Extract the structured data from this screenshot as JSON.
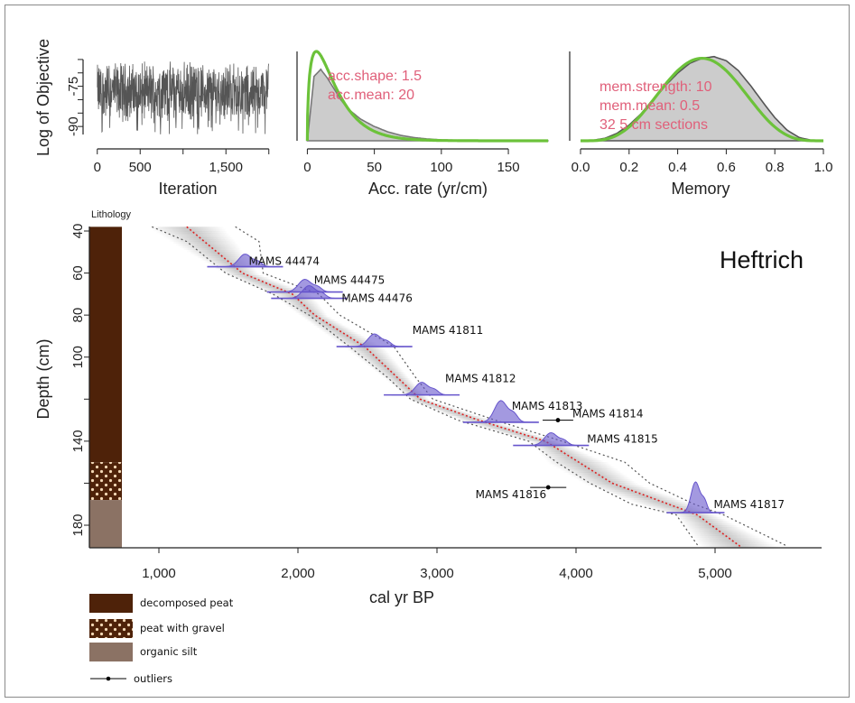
{
  "chart_data": [
    {
      "type": "line",
      "ylabel": "Log of Objective",
      "xlabel": "Iteration",
      "xlim": [
        -50,
        2150
      ],
      "ylim": [
        -95,
        -62
      ],
      "x_ticks": [
        0,
        500,
        1500
      ],
      "x_tick_labels": [
        "0",
        "500",
        "1,500"
      ],
      "x_minor_ticks": [
        1000,
        2000
      ],
      "y_ticks": [
        -75,
        -90
      ],
      "y_tick_labels": [
        "-75",
        "-90"
      ],
      "y_minor_ticks": [
        -65,
        -70,
        -80,
        -85
      ],
      "series": [
        {
          "mean": -77,
          "min": -93,
          "max": -65,
          "n_points": 2000,
          "color": "#555555"
        }
      ]
    },
    {
      "type": "area",
      "xlabel": "Acc. rate (yr/cm)",
      "xlim": [
        -5,
        185
      ],
      "x_ticks": [
        0,
        50,
        100,
        150
      ],
      "x_tick_labels": [
        "0",
        "50",
        "100",
        "150"
      ],
      "annotations": [
        "acc.shape:  1.5",
        "acc.mean:  20"
      ],
      "annotation_color": "#e0607a",
      "series": [
        {
          "kind": "prior",
          "color": "#6cc23a",
          "distribution": "gamma",
          "shape": 1.5,
          "mean": 20
        },
        {
          "kind": "posterior",
          "color": "#777777",
          "fill": "#cccccc",
          "x": [
            0,
            5,
            10,
            15,
            20,
            25,
            30,
            40,
            50,
            60,
            70,
            80,
            90,
            100,
            120,
            150,
            180
          ],
          "y": [
            0,
            0.72,
            0.8,
            0.7,
            0.58,
            0.46,
            0.36,
            0.24,
            0.16,
            0.1,
            0.06,
            0.035,
            0.02,
            0.01,
            0.004,
            0.001,
            0
          ]
        }
      ]
    },
    {
      "type": "area",
      "xlabel": "Memory",
      "xlim": [
        -0.02,
        1.02
      ],
      "x_ticks": [
        0.0,
        0.2,
        0.4,
        0.6,
        0.8,
        1.0
      ],
      "x_tick_labels": [
        "0.0",
        "0.2",
        "0.4",
        "0.6",
        "0.8",
        "1.0"
      ],
      "annotations": [
        "mem.strength: 10",
        "mem.mean: 0.5",
        "32 5 cm sections"
      ],
      "annotation_color": "#e0607a",
      "series": [
        {
          "kind": "prior",
          "color": "#6cc23a",
          "distribution": "beta",
          "strength": 10,
          "mean": 0.5
        },
        {
          "kind": "posterior",
          "color": "#555555",
          "fill": "#cccccc",
          "x": [
            0,
            0.05,
            0.1,
            0.15,
            0.2,
            0.25,
            0.3,
            0.35,
            0.4,
            0.45,
            0.5,
            0.55,
            0.6,
            0.65,
            0.7,
            0.75,
            0.8,
            0.85,
            0.9,
            0.95,
            1.0
          ],
          "y": [
            0,
            0.005,
            0.03,
            0.09,
            0.19,
            0.33,
            0.5,
            0.67,
            0.82,
            0.94,
            1.0,
            1.02,
            0.97,
            0.85,
            0.67,
            0.47,
            0.28,
            0.13,
            0.04,
            0.006,
            0
          ]
        }
      ]
    },
    {
      "type": "line",
      "title": "Heftrich",
      "xlabel": "cal yr BP",
      "ylabel": "Depth (cm)",
      "xlim": [
        700,
        5750
      ],
      "ylim": [
        193,
        38
      ],
      "x_ticks": [
        1000,
        2000,
        3000,
        4000,
        5000
      ],
      "x_tick_labels": [
        "1,000",
        "2,000",
        "3,000",
        "4,000",
        "5,000"
      ],
      "y_ticks": [
        40,
        60,
        80,
        100,
        140,
        180
      ],
      "y_tick_labels": [
        "40",
        "60",
        "80",
        "100",
        "140",
        "180"
      ],
      "y_minor_ticks": [
        120,
        160
      ],
      "model_mean": {
        "color": "#dd2222",
        "depth": [
          38,
          60,
          70,
          80,
          95,
          120,
          130,
          140,
          160,
          175,
          190
        ],
        "age": [
          1200,
          1600,
          1960,
          2120,
          2480,
          2880,
          3300,
          3780,
          4260,
          4870,
          5180
        ]
      },
      "model_range": {
        "color": "#555555",
        "depth": [
          38,
          45,
          60,
          70,
          80,
          95,
          110,
          120,
          130,
          140,
          150,
          160,
          170,
          175,
          190
        ],
        "age_min": [
          950,
          1200,
          1480,
          1820,
          2080,
          2370,
          2650,
          2810,
          3150,
          3660,
          3860,
          4100,
          4400,
          4720,
          4880
        ],
        "age_max": [
          1550,
          1720,
          1750,
          2150,
          2300,
          2690,
          2850,
          2970,
          3420,
          3900,
          4350,
          4530,
          4850,
          5060,
          5520
        ]
      },
      "dates": [
        {
          "label": "MAMS 44474",
          "depth": 57,
          "age": 1620
        },
        {
          "label": "MAMS 44475",
          "depth": 69,
          "age": 2050
        },
        {
          "label": "MAMS 44476",
          "depth": 72,
          "age": 2080
        },
        {
          "label": "MAMS 41811",
          "depth": 95,
          "age": 2550
        },
        {
          "label": "MAMS 41812",
          "depth": 118,
          "age": 2890
        },
        {
          "label": "MAMS 41813",
          "depth": 131,
          "age": 3460
        },
        {
          "label": "MAMS 41815",
          "depth": 142,
          "age": 3820
        },
        {
          "label": "MAMS 41817",
          "depth": 174,
          "age": 4860
        }
      ],
      "date_color": "#6655cc",
      "outliers": [
        {
          "label": "MAMS 41814",
          "depth": 130,
          "age": 3870,
          "err": 110
        },
        {
          "label": "MAMS 41816",
          "depth": 162,
          "age": 3800,
          "err": 130
        }
      ],
      "lithology": {
        "title": "Lithology",
        "units": [
          {
            "name": "decomposed peat",
            "top": 38,
            "bottom": 150,
            "color": "#4e2209",
            "pattern": "solid"
          },
          {
            "name": "peat with gravel",
            "top": 150,
            "bottom": 168,
            "color": "#4e2209",
            "pattern": "dots"
          },
          {
            "name": "organic silt",
            "top": 168,
            "bottom": 193,
            "color": "#8b7264",
            "pattern": "solid"
          }
        ]
      },
      "legend": [
        {
          "label": "decomposed peat",
          "color": "#4e2209",
          "pattern": "solid"
        },
        {
          "label": "peat with gravel",
          "color": "#4e2209",
          "pattern": "dots"
        },
        {
          "label": "organic silt",
          "color": "#8b7264",
          "pattern": "solid"
        },
        {
          "label": "outliers",
          "color": "#000000",
          "pattern": "errorbar"
        }
      ]
    }
  ]
}
